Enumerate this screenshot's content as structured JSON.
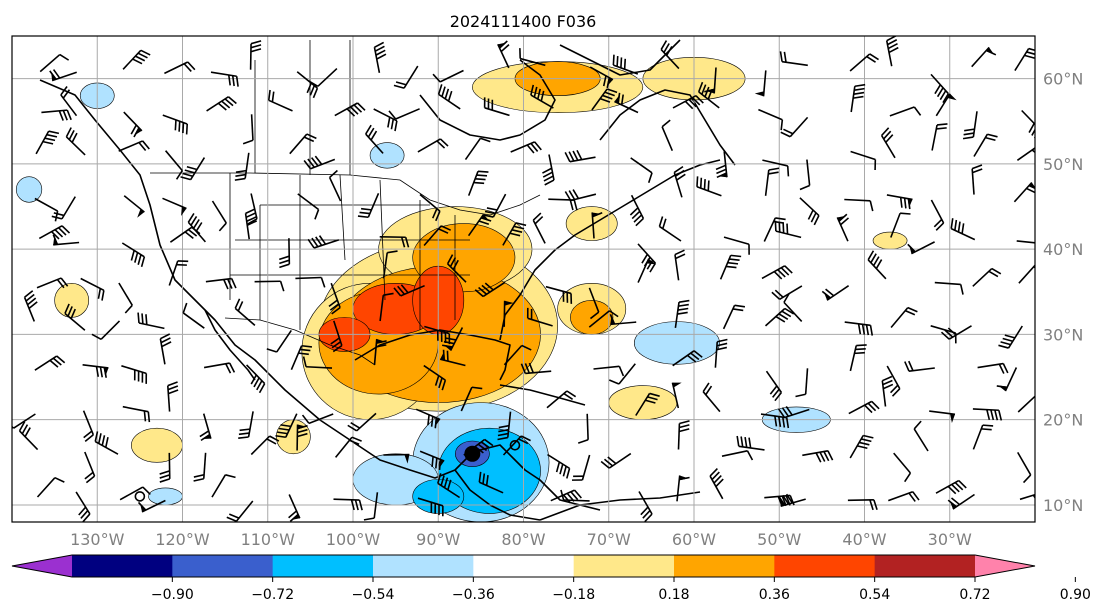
{
  "title": "2024111400 F036",
  "map": {
    "lon_range": [
      -140,
      -20
    ],
    "lat_range": [
      8,
      65
    ],
    "lon_ticks": [
      {
        "value": -130,
        "label": "130°W"
      },
      {
        "value": -120,
        "label": "120°W"
      },
      {
        "value": -110,
        "label": "110°W"
      },
      {
        "value": -100,
        "label": "100°W"
      },
      {
        "value": -90,
        "label": "90°W"
      },
      {
        "value": -80,
        "label": "80°W"
      },
      {
        "value": -70,
        "label": "70°W"
      },
      {
        "value": -60,
        "label": "60°W"
      },
      {
        "value": -50,
        "label": "50°W"
      },
      {
        "value": -40,
        "label": "40°W"
      },
      {
        "value": -30,
        "label": "30°W"
      }
    ],
    "lat_ticks": [
      {
        "value": 10,
        "label": "10°N"
      },
      {
        "value": 20,
        "label": "20°N"
      },
      {
        "value": 30,
        "label": "30°N"
      },
      {
        "value": 40,
        "label": "40°N"
      },
      {
        "value": 50,
        "label": "50°N"
      },
      {
        "value": 60,
        "label": "60°N"
      }
    ],
    "grid": true,
    "tick_label_color": "#808080"
  },
  "colorbar": {
    "ticks": [
      "−0.90",
      "−0.72",
      "−0.54",
      "−0.36",
      "−0.18",
      "0.18",
      "0.36",
      "0.54",
      "0.72",
      "0.90"
    ],
    "colors": [
      "#9b30d0",
      "#000080",
      "#3a5fcd",
      "#00bfff",
      "#b0e2ff",
      "#ffffff",
      "#ffe88a",
      "#ffa500",
      "#ff4500",
      "#b22222",
      "#ff82ab"
    ],
    "extend": "both"
  },
  "anomaly_fields": [
    {
      "level": 0.18,
      "color": "#ffe88a",
      "blobs": [
        [
          -90,
          31,
          14,
          10
        ],
        [
          -98,
          28,
          8,
          8
        ],
        [
          -88,
          40,
          9,
          5
        ],
        [
          -72,
          33,
          4,
          3
        ],
        [
          -66,
          22,
          4,
          2
        ],
        [
          -76,
          59,
          10,
          3
        ],
        [
          -60,
          60,
          6,
          2.5
        ],
        [
          -72,
          43,
          3,
          2
        ],
        [
          -133,
          34,
          2,
          2
        ],
        [
          -123,
          17,
          3,
          2
        ],
        [
          -107,
          18,
          2,
          2
        ],
        [
          -37,
          41,
          2,
          1
        ]
      ]
    },
    {
      "level": 0.36,
      "color": "#ffa500",
      "blobs": [
        [
          -90,
          30,
          12,
          8
        ],
        [
          -97,
          29,
          7,
          6
        ],
        [
          -87,
          39,
          6,
          4
        ],
        [
          -76,
          60,
          5,
          2
        ],
        [
          -72,
          32,
          2.5,
          2
        ]
      ]
    },
    {
      "level": 0.54,
      "color": "#ff4500",
      "blobs": [
        [
          -95,
          33,
          5,
          3
        ],
        [
          -101,
          30,
          3,
          2
        ],
        [
          -90,
          34,
          3,
          4
        ]
      ]
    },
    {
      "level": -0.18,
      "color": "#b0e2ff",
      "blobs": [
        [
          -85,
          15,
          8,
          7
        ],
        [
          -95,
          13,
          5,
          3
        ],
        [
          -62,
          29,
          5,
          2.5
        ],
        [
          -48,
          20,
          4,
          1.5
        ],
        [
          -130,
          58,
          2,
          1.5
        ],
        [
          -138,
          47,
          1.5,
          1.5
        ],
        [
          -122,
          11,
          2,
          1
        ],
        [
          -96,
          51,
          2,
          1.5
        ]
      ]
    },
    {
      "level": -0.36,
      "color": "#00bfff",
      "blobs": [
        [
          -84,
          14,
          6,
          5
        ],
        [
          -90,
          11,
          3,
          2
        ]
      ]
    },
    {
      "level": -0.54,
      "color": "#3a5fcd",
      "blobs": [
        [
          -86,
          16,
          2,
          1.5
        ]
      ]
    }
  ],
  "storm_markers": [
    {
      "lon": -86,
      "lat": 16,
      "type": "low-center"
    },
    {
      "lon": -81,
      "lat": 17,
      "type": "ring"
    },
    {
      "lon": -125,
      "lat": 11,
      "type": "ring"
    }
  ]
}
